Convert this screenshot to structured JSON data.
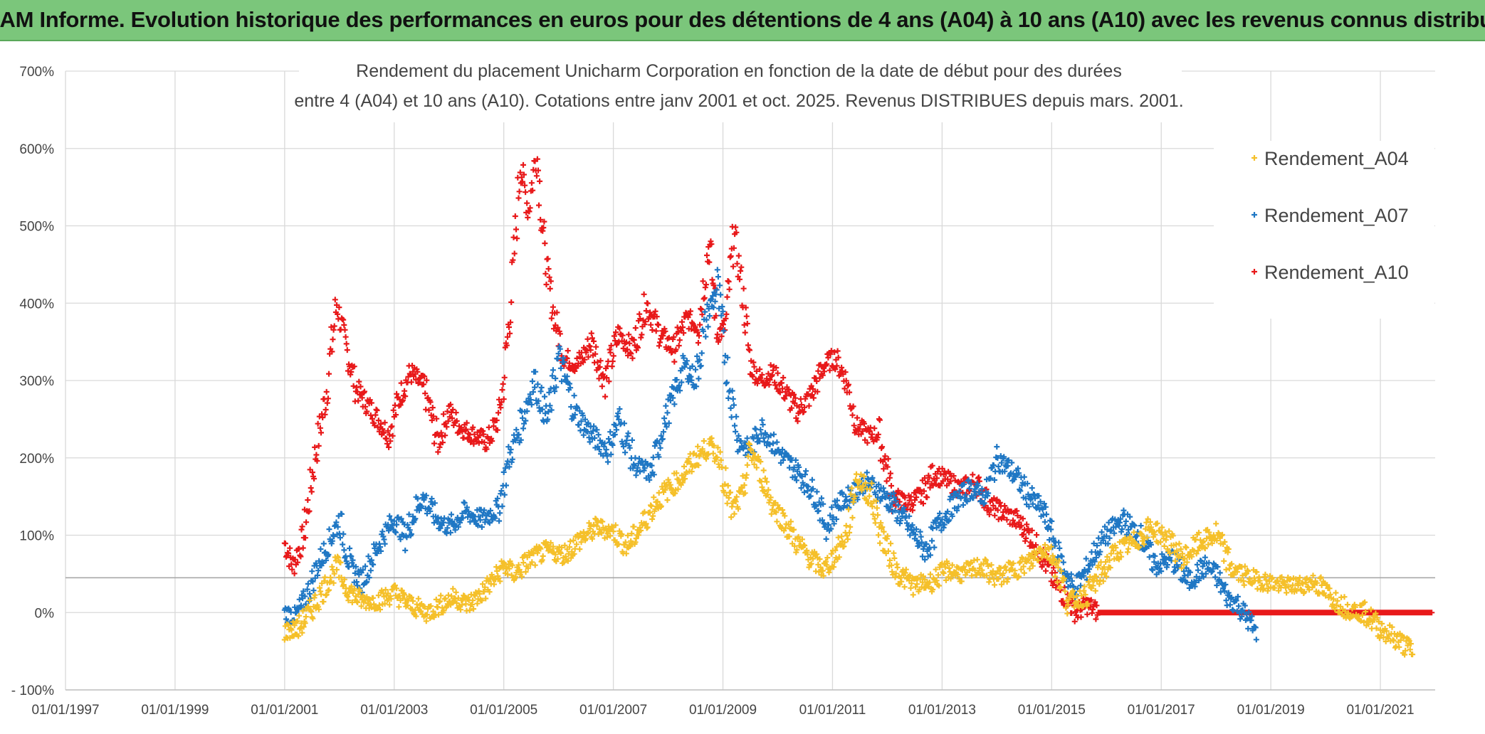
{
  "banner": "ADAM Informe. Evolution historique des performances en euros pour des détentions de 4 ans (A04) à 10 ans (A10) avec les revenus connus distribués",
  "chart_data": {
    "type": "scatter",
    "title_line1": "Rendement du placement Unicharm Corporation en fonction de la date de début pour des durées",
    "title_line2": "entre 4 (A04) et 10 ans (A10). Cotations entre janv 2001 et oct. 2025. Revenus DISTRIBUES depuis mars. 2001.",
    "xlabel": "",
    "ylabel": "",
    "xlim": [
      1997.0,
      2022.0
    ],
    "ylim": [
      -100,
      700
    ],
    "y_ticks": [
      -100,
      0,
      100,
      200,
      300,
      400,
      500,
      600,
      700
    ],
    "y_tick_labels": [
      "- 100%",
      "0%",
      "100%",
      "200%",
      "300%",
      "400%",
      "500%",
      "600%",
      "700%"
    ],
    "x_ticks": [
      1997,
      1999,
      2001,
      2003,
      2005,
      2007,
      2009,
      2011,
      2013,
      2015,
      2017,
      2019,
      2021
    ],
    "x_tick_labels": [
      "01/01/1997",
      "01/01/1999",
      "01/01/2001",
      "01/01/2003",
      "01/01/2005",
      "01/01/2007",
      "01/01/2009",
      "01/01/2011",
      "01/01/2013",
      "01/01/2015",
      "01/01/2017",
      "01/01/2019",
      "01/01/2021"
    ],
    "reference_line_y": 45,
    "marker": "+",
    "legend_position": "top-right",
    "series": [
      {
        "name": "Rendement_A04",
        "color": "#f5c02a",
        "x": [
          2001.0,
          2001.25,
          2001.5,
          2001.75,
          2001.95,
          2002.15,
          2002.4,
          2002.7,
          2003.0,
          2003.3,
          2003.6,
          2003.85,
          2004.1,
          2004.35,
          2004.6,
          2004.85,
          2005.0,
          2005.2,
          2005.5,
          2005.8,
          2006.1,
          2006.4,
          2006.7,
          2007.0,
          2007.25,
          2007.5,
          2007.75,
          2008.0,
          2008.25,
          2008.5,
          2008.75,
          2008.95,
          2009.15,
          2009.35,
          2009.5,
          2009.7,
          2009.9,
          2010.1,
          2010.35,
          2010.6,
          2010.85,
          2011.05,
          2011.25,
          2011.45,
          2011.7,
          2011.95,
          2012.2,
          2012.5,
          2012.8,
          2013.1,
          2013.4,
          2013.7,
          2014.0,
          2014.3,
          2014.6,
          2014.85,
          2015.05,
          2015.3,
          2015.6,
          2015.9,
          2016.2,
          2016.5,
          2016.8,
          2017.1,
          2017.4,
          2017.7,
          2018.0,
          2018.3,
          2018.6,
          2018.9,
          2019.2,
          2019.5,
          2019.8,
          2020.1,
          2020.4,
          2020.7,
          2021.0,
          2021.3,
          2021.6
        ],
        "y": [
          -25,
          -20,
          5,
          35,
          60,
          30,
          15,
          15,
          25,
          10,
          0,
          10,
          20,
          10,
          25,
          45,
          60,
          50,
          70,
          80,
          75,
          95,
          110,
          105,
          85,
          110,
          140,
          160,
          175,
          200,
          215,
          200,
          130,
          150,
          210,
          180,
          140,
          120,
          90,
          70,
          55,
          75,
          100,
          175,
          150,
          90,
          50,
          35,
          40,
          55,
          50,
          60,
          45,
          55,
          65,
          85,
          70,
          15,
          20,
          50,
          80,
          90,
          110,
          95,
          70,
          90,
          100,
          55,
          45,
          40,
          35,
          35,
          40,
          20,
          5,
          0,
          -20,
          -35,
          -50
        ]
      },
      {
        "name": "Rendement_A07",
        "color": "#1f77c4",
        "x": [
          2001.0,
          2001.2,
          2001.4,
          2001.6,
          2001.8,
          2002.0,
          2002.2,
          2002.4,
          2002.6,
          2002.8,
          2003.0,
          2003.2,
          2003.5,
          2003.8,
          2004.0,
          2004.3,
          2004.6,
          2004.9,
          2005.1,
          2005.3,
          2005.55,
          2005.8,
          2006.0,
          2006.3,
          2006.6,
          2006.9,
          2007.1,
          2007.4,
          2007.7,
          2007.9,
          2008.1,
          2008.3,
          2008.5,
          2008.7,
          2008.9,
          2009.1,
          2009.3,
          2009.5,
          2009.7,
          2009.9,
          2010.1,
          2010.4,
          2010.7,
          2010.9,
          2011.1,
          2011.3,
          2011.6,
          2011.8,
          2012.1,
          2012.4,
          2012.7,
          2013.0,
          2013.2,
          2013.5,
          2013.8,
          2014.0,
          2014.3,
          2014.6,
          2014.85,
          2015.0,
          2015.2,
          2015.4,
          2015.6,
          2015.8,
          2016.0,
          2016.3,
          2016.6,
          2016.9,
          2017.2,
          2017.5,
          2017.8,
          2018.0,
          2018.2,
          2018.4,
          2018.6,
          2018.75
        ],
        "y": [
          0,
          -5,
          20,
          60,
          90,
          120,
          60,
          40,
          70,
          100,
          120,
          100,
          150,
          120,
          110,
          130,
          120,
          135,
          200,
          240,
          300,
          250,
          330,
          260,
          230,
          210,
          250,
          190,
          180,
          240,
          280,
          320,
          300,
          380,
          420,
          300,
          220,
          210,
          240,
          220,
          200,
          180,
          150,
          110,
          140,
          150,
          170,
          160,
          140,
          110,
          80,
          120,
          140,
          160,
          150,
          200,
          180,
          150,
          130,
          100,
          60,
          30,
          50,
          80,
          100,
          120,
          100,
          60,
          70,
          40,
          60,
          50,
          20,
          10,
          -10,
          -30
        ]
      },
      {
        "name": "Rendement_A10",
        "color": "#e8191a",
        "x": [
          2001.0,
          2001.15,
          2001.35,
          2001.55,
          2001.75,
          2001.95,
          2002.1,
          2002.3,
          2002.5,
          2002.7,
          2002.9,
          2003.1,
          2003.3,
          2003.55,
          2003.8,
          2004.0,
          2004.2,
          2004.45,
          2004.7,
          2004.9,
          2005.0,
          2005.15,
          2005.3,
          2005.45,
          2005.6,
          2005.75,
          2005.9,
          2006.1,
          2006.35,
          2006.6,
          2006.85,
          2007.1,
          2007.35,
          2007.6,
          2007.85,
          2008.1,
          2008.35,
          2008.55,
          2008.75,
          2008.9,
          2009.05,
          2009.2,
          2009.35,
          2009.5,
          2009.7,
          2009.9,
          2010.1,
          2010.35,
          2010.6,
          2010.85,
          2011.05,
          2011.25,
          2011.45,
          2011.65,
          2011.85,
          2012.1,
          2012.35,
          2012.6,
          2012.85,
          2013.1,
          2013.35,
          2013.6,
          2013.85,
          2014.1,
          2014.35,
          2014.6,
          2014.85,
          2015.05,
          2015.25,
          2015.45,
          2015.65,
          2015.85,
          2016.1,
          2016.5,
          2017.0,
          2017.5,
          2018.0,
          2018.5,
          2019.0,
          2019.5,
          2020.0,
          2020.5,
          2021.0,
          2021.5,
          2021.95
        ],
        "y": [
          90,
          60,
          100,
          200,
          280,
          400,
          350,
          290,
          270,
          250,
          230,
          280,
          310,
          290,
          220,
          260,
          240,
          230,
          220,
          250,
          300,
          420,
          580,
          520,
          600,
          460,
          390,
          330,
          320,
          350,
          300,
          360,
          340,
          400,
          360,
          340,
          380,
          370,
          480,
          360,
          370,
          490,
          420,
          320,
          300,
          310,
          290,
          260,
          280,
          320,
          330,
          300,
          240,
          230,
          230,
          150,
          140,
          150,
          180,
          170,
          160,
          170,
          140,
          130,
          120,
          100,
          70,
          40,
          20,
          0,
          10,
          0,
          0,
          0,
          0,
          0,
          0,
          0,
          0,
          0,
          0,
          0,
          0,
          0,
          0
        ]
      }
    ]
  }
}
